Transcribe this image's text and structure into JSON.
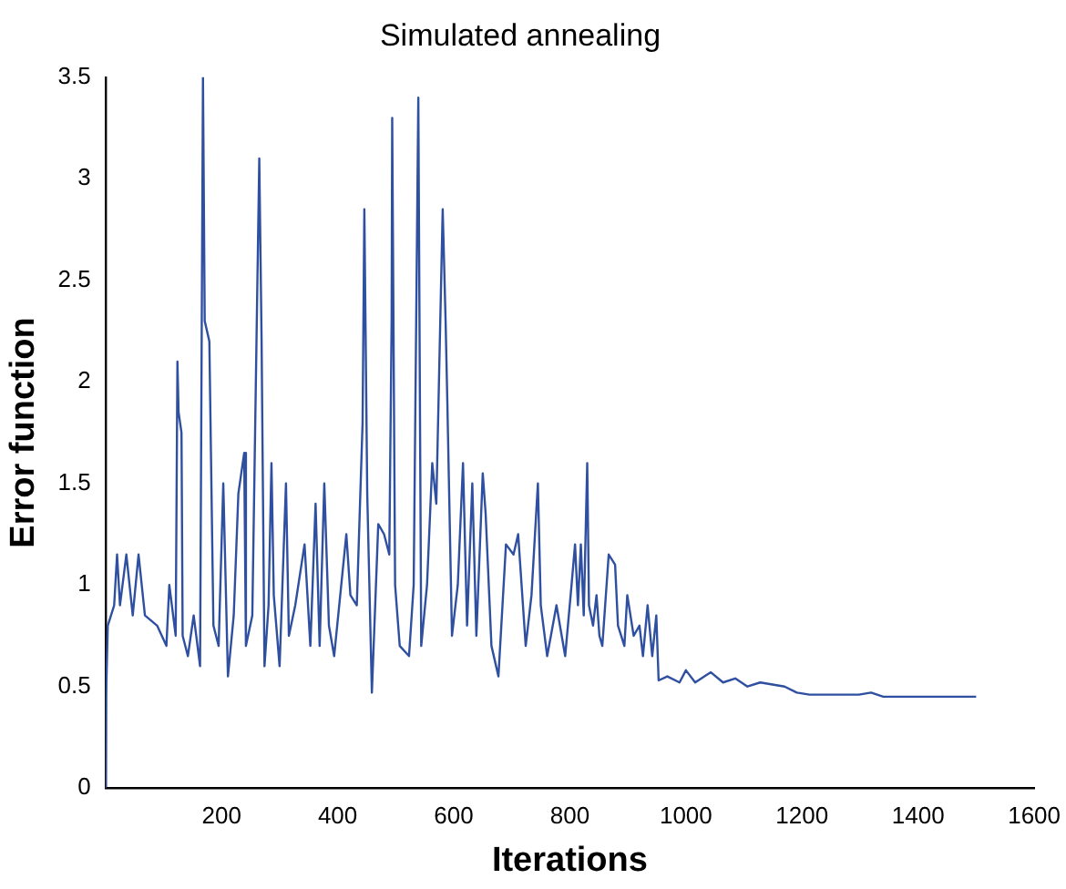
{
  "chart_data": {
    "type": "line",
    "title": "Simulated annealing",
    "xlabel": "Iterations",
    "ylabel": "Error function",
    "xlim": [
      0,
      1600
    ],
    "xticks": [
      200,
      400,
      600,
      800,
      1000,
      1200,
      1400,
      1600
    ],
    "ylim": [
      0,
      3.5
    ],
    "yticks": [
      0,
      0.5,
      1,
      1.5,
      2,
      2.5,
      3,
      3.5
    ],
    "grid": false,
    "legend": false,
    "marker": "none",
    "line_style": "solid",
    "series": [
      {
        "color": "#2f4fa0",
        "x": [
          0,
          1,
          4,
          15,
          20,
          25,
          36,
          47,
          57,
          68,
          89,
          105,
          110,
          121,
          124,
          126,
          131,
          133,
          142,
          152,
          163,
          168,
          171,
          179,
          182,
          186,
          195,
          203,
          211,
          221,
          229,
          239,
          242,
          253,
          265,
          269,
          274,
          281,
          286,
          290,
          300,
          311,
          316,
          327,
          343,
          353,
          362,
          369,
          377,
          385,
          394,
          401,
          415,
          422,
          433,
          443,
          446,
          451,
          459,
          470,
          480,
          489,
          493,
          494,
          499,
          507,
          523,
          531,
          539,
          544,
          554,
          563,
          570,
          581,
          586,
          589,
          597,
          607,
          616,
          623,
          632,
          639,
          650,
          655,
          665,
          677,
          690,
          703,
          711,
          724,
          734,
          745,
          750,
          761,
          777,
          792,
          803,
          809,
          814,
          819,
          824,
          830,
          833,
          840,
          846,
          851,
          856,
          867,
          878,
          883,
          894,
          899,
          910,
          920,
          926,
          934,
          942,
          949,
          953,
          968,
          989,
          1000,
          1016,
          1032,
          1043,
          1064,
          1085,
          1106,
          1128,
          1149,
          1170,
          1191,
          1213,
          1245,
          1298,
          1319,
          1340,
          1500
        ],
        "values": [
          0,
          0.45,
          0.8,
          0.9,
          1.15,
          0.9,
          1.15,
          0.85,
          1.15,
          0.85,
          0.8,
          0.7,
          1.0,
          0.75,
          2.1,
          1.85,
          1.75,
          0.75,
          0.65,
          0.85,
          0.6,
          3.5,
          2.3,
          2.2,
          1.6,
          0.8,
          0.7,
          1.5,
          0.55,
          0.85,
          1.45,
          1.65,
          0.7,
          0.85,
          3.1,
          2.2,
          0.6,
          0.9,
          1.6,
          0.95,
          0.6,
          1.5,
          0.75,
          0.9,
          1.2,
          0.7,
          1.4,
          0.7,
          1.5,
          0.8,
          0.65,
          0.85,
          1.25,
          0.95,
          0.9,
          1.8,
          2.85,
          1.45,
          0.47,
          1.3,
          1.25,
          1.15,
          2.3,
          3.3,
          1.0,
          0.7,
          0.65,
          1.0,
          3.4,
          0.7,
          1.0,
          1.6,
          1.4,
          2.85,
          2.3,
          1.9,
          0.75,
          1.0,
          1.6,
          0.8,
          1.5,
          0.75,
          1.55,
          1.35,
          0.7,
          0.55,
          1.2,
          1.15,
          1.25,
          0.7,
          0.95,
          1.5,
          0.9,
          0.65,
          0.9,
          0.65,
          1.0,
          1.2,
          0.9,
          1.2,
          0.85,
          1.6,
          0.9,
          0.8,
          0.95,
          0.75,
          0.7,
          1.15,
          1.1,
          0.8,
          0.7,
          0.95,
          0.75,
          0.8,
          0.65,
          0.9,
          0.65,
          0.85,
          0.53,
          0.55,
          0.52,
          0.58,
          0.52,
          0.55,
          0.57,
          0.52,
          0.54,
          0.5,
          0.52,
          0.51,
          0.5,
          0.47,
          0.46,
          0.46,
          0.46,
          0.47,
          0.45,
          0.45
        ]
      }
    ]
  }
}
